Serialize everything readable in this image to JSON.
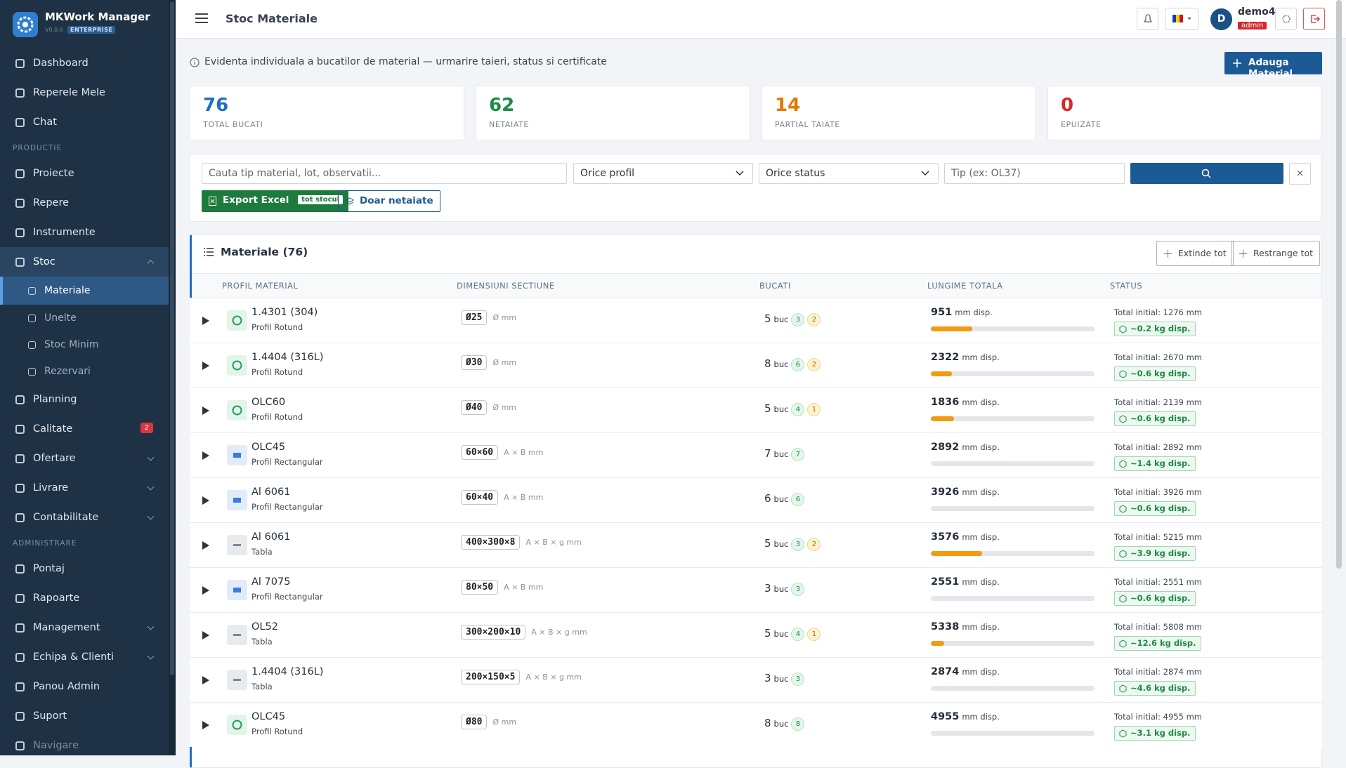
{
  "sidebar": {
    "brand": "MKWork Manager",
    "version": "V0.8.6",
    "edition": "ENTERPRISE",
    "items": [
      {
        "label": "Dashboard"
      },
      {
        "label": "Reperele Mele"
      },
      {
        "label": "Chat"
      },
      {
        "section": "PRODUCTIE"
      },
      {
        "label": "Proiecte"
      },
      {
        "label": "Repere"
      },
      {
        "label": "Instrumente"
      },
      {
        "label": "Stoc",
        "expandable": true,
        "open": true,
        "current": true
      },
      {
        "label": "Materiale",
        "sub": true,
        "active": true
      },
      {
        "label": "Unelte",
        "sub": true
      },
      {
        "label": "Stoc Minim",
        "sub": true
      },
      {
        "label": "Rezervari",
        "sub": true
      },
      {
        "label": "Planning"
      },
      {
        "label": "Calitate",
        "badge": "2"
      },
      {
        "label": "Ofertare",
        "expandable": true
      },
      {
        "label": "Livrare",
        "expandable": true
      },
      {
        "label": "Contabilitate",
        "expandable": true
      },
      {
        "section": "ADMINISTRARE"
      },
      {
        "label": "Pontaj"
      },
      {
        "label": "Rapoarte"
      },
      {
        "label": "Management",
        "expandable": true
      },
      {
        "label": "Echipa & Clienti",
        "expandable": true
      },
      {
        "label": "Panou Admin"
      },
      {
        "label": "Suport"
      },
      {
        "label": "Navigare",
        "muted": true
      }
    ]
  },
  "header": {
    "title": "Stoc Materiale",
    "avatar": "D",
    "user": "demo4",
    "role": "admin"
  },
  "intro": {
    "text": "Evidenta individuala a bucatilor de material — urmarire taieri, status si certificate",
    "add_button": "Adauga Material"
  },
  "stats": [
    {
      "value": 76,
      "label": "TOTAL BUCATI",
      "color": "#1f6fc5"
    },
    {
      "value": 62,
      "label": "NETAIATE",
      "color": "#1e8a45"
    },
    {
      "value": 14,
      "label": "PARTIAL TAIATE",
      "color": "#e07b00"
    },
    {
      "value": 0,
      "label": "EPUIZATE",
      "color": "#d42a2a"
    }
  ],
  "filters": {
    "search_placeholder": "Cauta tip material, lot, observatii...",
    "profile": "Orice profil",
    "status": "Orice status",
    "type_placeholder": "Tip (ex: OL37)",
    "clear": "×",
    "export": "Export Excel",
    "export_badge": "tot stocul",
    "uncut_only": "Doar netaiate"
  },
  "table": {
    "title": "Materiale (76)",
    "expand": "Extinde tot",
    "collapse": "Restrange tot",
    "columns": [
      "PROFIL MATERIAL",
      "DIMENSIUNI SECTIUNE",
      "BUCATI",
      "LUNGIME TOTALA",
      "STATUS"
    ],
    "rows": [
      {
        "material": "1.4301 (304)",
        "profile": "Profil Rotund",
        "icon": "round",
        "dims": "Ø25",
        "dims_unit": "Ø mm",
        "count": 5,
        "count_unit": "buc",
        "uncut": 3,
        "partial": 2,
        "length": 951,
        "length_unit": "mm disp.",
        "initial_label": "Total initial:",
        "initial": 1276,
        "initial_unit": "mm",
        "weight": "~0.2 kg disp."
      },
      {
        "material": "1.4404 (316L)",
        "profile": "Profil Rotund",
        "icon": "round",
        "dims": "Ø30",
        "dims_unit": "Ø mm",
        "count": 8,
        "count_unit": "buc",
        "uncut": 6,
        "partial": 2,
        "length": 2322,
        "length_unit": "mm disp.",
        "initial_label": "Total initial:",
        "initial": 2670,
        "initial_unit": "mm",
        "weight": "~0.6 kg disp."
      },
      {
        "material": "OLC60",
        "profile": "Profil Rotund",
        "icon": "round",
        "dims": "Ø40",
        "dims_unit": "Ø mm",
        "count": 5,
        "count_unit": "buc",
        "uncut": 4,
        "partial": 1,
        "length": 1836,
        "length_unit": "mm disp.",
        "initial_label": "Total initial:",
        "initial": 2139,
        "initial_unit": "mm",
        "weight": "~0.6 kg disp."
      },
      {
        "material": "OLC45",
        "profile": "Profil Rectangular",
        "icon": "rect",
        "dims": "60×60",
        "dims_unit": "A × B mm",
        "count": 7,
        "count_unit": "buc",
        "uncut": 7,
        "length": 2892,
        "length_unit": "mm disp.",
        "initial_label": "Total initial:",
        "initial": 2892,
        "initial_unit": "mm",
        "weight": "~1.4 kg disp."
      },
      {
        "material": "Al 6061",
        "profile": "Profil Rectangular",
        "icon": "rect",
        "dims": "60×40",
        "dims_unit": "A × B mm",
        "count": 6,
        "count_unit": "buc",
        "uncut": 6,
        "length": 3926,
        "length_unit": "mm disp.",
        "initial_label": "Total initial:",
        "initial": 3926,
        "initial_unit": "mm",
        "weight": "~0.6 kg disp."
      },
      {
        "material": "Al 6061",
        "profile": "Tabla",
        "icon": "sheet",
        "dims": "400×300×8",
        "dims_unit": "A × B × g mm",
        "count": 5,
        "count_unit": "buc",
        "uncut": 3,
        "partial": 2,
        "length": 3576,
        "length_unit": "mm disp.",
        "initial_label": "Total initial:",
        "initial": 5215,
        "initial_unit": "mm",
        "weight": "~3.9 kg disp."
      },
      {
        "material": "Al 7075",
        "profile": "Profil Rectangular",
        "icon": "rect",
        "dims": "80×50",
        "dims_unit": "A × B mm",
        "count": 3,
        "count_unit": "buc",
        "uncut": 3,
        "length": 2551,
        "length_unit": "mm disp.",
        "initial_label": "Total initial:",
        "initial": 2551,
        "initial_unit": "mm",
        "weight": "~0.6 kg disp."
      },
      {
        "material": "OL52",
        "profile": "Tabla",
        "icon": "sheet",
        "dims": "300×200×10",
        "dims_unit": "A × B × g mm",
        "count": 5,
        "count_unit": "buc",
        "uncut": 4,
        "partial": 1,
        "length": 5338,
        "length_unit": "mm disp.",
        "initial_label": "Total initial:",
        "initial": 5808,
        "initial_unit": "mm",
        "weight": "~12.6 kg disp."
      },
      {
        "material": "1.4404 (316L)",
        "profile": "Tabla",
        "icon": "sheet",
        "dims": "200×150×5",
        "dims_unit": "A × B × g mm",
        "count": 3,
        "count_unit": "buc",
        "uncut": 3,
        "length": 2874,
        "length_unit": "mm disp.",
        "initial_label": "Total initial:",
        "initial": 2874,
        "initial_unit": "mm",
        "weight": "~4.6 kg disp."
      },
      {
        "material": "OLC45",
        "profile": "Profil Rotund",
        "icon": "round",
        "dims": "Ø80",
        "dims_unit": "Ø mm",
        "count": 8,
        "count_unit": "buc",
        "uncut": 8,
        "length": 4955,
        "length_unit": "mm disp.",
        "initial_label": "Total initial:",
        "initial": 4955,
        "initial_unit": "mm",
        "weight": "~3.1 kg disp."
      }
    ]
  }
}
